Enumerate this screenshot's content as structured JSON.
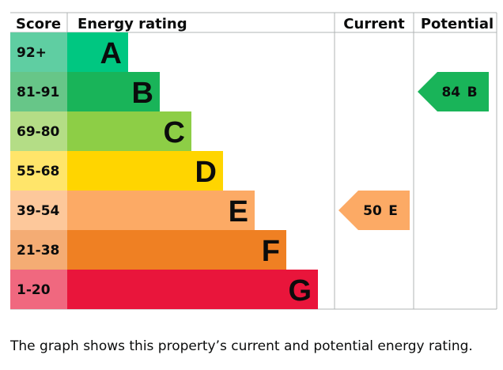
{
  "chart_data": {
    "type": "bar",
    "headers": {
      "score": "Score",
      "rating": "Energy rating",
      "current": "Current",
      "potential": "Potential"
    },
    "bands": [
      {
        "score": "92+",
        "letter": "A",
        "color": "#00c781",
        "score_bg": "#5fcea2"
      },
      {
        "score": "81-91",
        "letter": "B",
        "color": "#19b459",
        "score_bg": "#67c688"
      },
      {
        "score": "69-80",
        "letter": "C",
        "color": "#8dce46",
        "score_bg": "#b4dd86"
      },
      {
        "score": "55-68",
        "letter": "D",
        "color": "#ffd500",
        "score_bg": "#ffe56a"
      },
      {
        "score": "39-54",
        "letter": "E",
        "color": "#fcaa65",
        "score_bg": "#fdc89b"
      },
      {
        "score": "21-38",
        "letter": "F",
        "color": "#ef8023",
        "score_bg": "#f4ac74"
      },
      {
        "score": "1-20",
        "letter": "G",
        "color": "#e9153b",
        "score_bg": "#f0687f"
      }
    ],
    "current": {
      "value": 50,
      "letter": "E",
      "label": "50 E",
      "color": "#fcaa65"
    },
    "potential": {
      "value": 84,
      "letter": "B",
      "label": "84 B",
      "color": "#19b459"
    }
  },
  "caption": "The graph shows this property’s current and potential energy rating."
}
